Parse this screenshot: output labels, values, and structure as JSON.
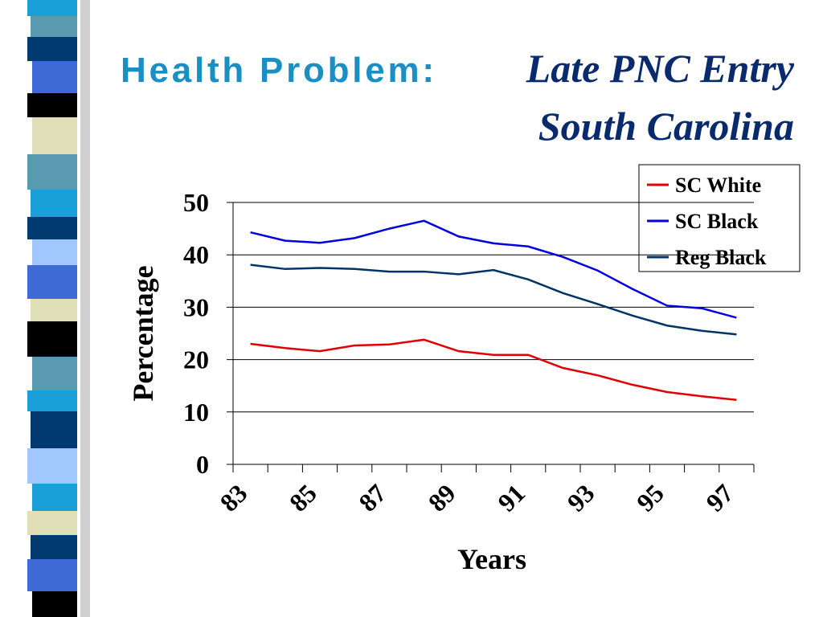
{
  "chart_data": {
    "type": "line",
    "title": "Health Problem:",
    "subtitle": [
      "Late PNC Entry",
      "South Carolina"
    ],
    "x_label": "Years",
    "y_label": "Percentage",
    "categories": [
      "83",
      null,
      "85",
      null,
      "87",
      null,
      "89",
      null,
      "91",
      null,
      "93",
      null,
      "95",
      null,
      "97"
    ],
    "series": [
      {
        "name": "SC White",
        "color": "#e00000",
        "values": [
          23.0,
          22.2,
          21.6,
          22.7,
          22.9,
          23.8,
          21.6,
          20.9,
          20.9,
          18.4,
          17.0,
          15.2,
          13.8,
          13.0,
          12.3
        ]
      },
      {
        "name": "SC Black",
        "color": "#0000e0",
        "values": [
          44.3,
          42.7,
          42.3,
          43.2,
          45.0,
          46.5,
          43.5,
          42.2,
          41.6,
          39.6,
          37.0,
          33.5,
          30.3,
          29.8,
          28.0
        ]
      },
      {
        "name": "Reg Black",
        "color": "#003366",
        "values": [
          38.1,
          37.3,
          37.5,
          37.3,
          36.8,
          36.8,
          36.3,
          37.1,
          35.3,
          32.7,
          30.6,
          28.4,
          26.5,
          25.5,
          24.8
        ]
      }
    ],
    "ylim": [
      0,
      50
    ],
    "yticks": [
      0,
      10,
      20,
      30,
      40,
      50
    ],
    "grid": true,
    "legend": "top-right"
  }
}
